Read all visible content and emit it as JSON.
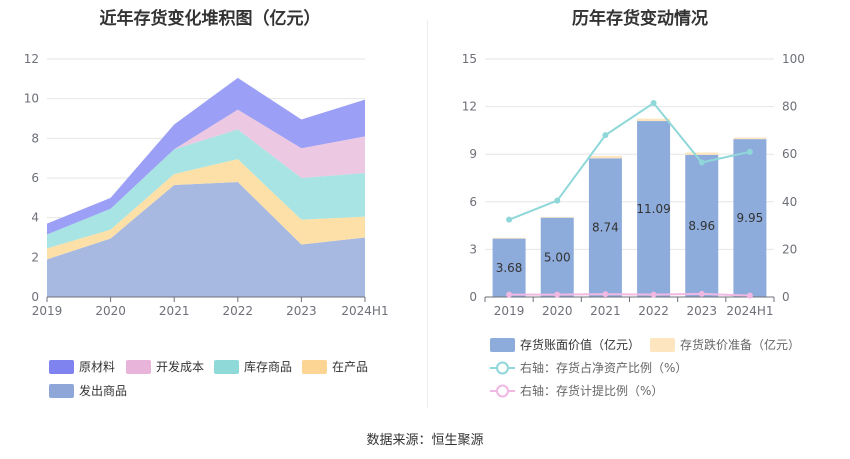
{
  "footer": "数据来源：恒生聚源",
  "chart_data": [
    {
      "type": "area",
      "stacked": true,
      "title": "近年存货变化堆积图（亿元）",
      "categories": [
        "2019",
        "2020",
        "2021",
        "2022",
        "2023",
        "2024H1"
      ],
      "ylim": [
        0,
        12
      ],
      "yticks": [
        0,
        2,
        4,
        6,
        8,
        10,
        12
      ],
      "grid": true,
      "legend_position": "bottom-left",
      "series": [
        {
          "name": "发出商品",
          "color": "#a7b9e0",
          "values": [
            1.9,
            2.95,
            5.65,
            5.8,
            2.65,
            3.0
          ]
        },
        {
          "name": "在产品",
          "color": "#fde0a8",
          "values": [
            0.55,
            0.45,
            0.55,
            1.15,
            1.25,
            1.05
          ]
        },
        {
          "name": "库存商品",
          "color": "#a8e4e3",
          "values": [
            0.7,
            1.05,
            1.25,
            1.5,
            2.1,
            2.2
          ]
        },
        {
          "name": "开发成本",
          "color": "#ecc8e2",
          "values": [
            0.0,
            0.0,
            0.0,
            1.0,
            1.5,
            1.85
          ]
        },
        {
          "name": "原材料",
          "color": "#9b9ff5",
          "values": [
            0.55,
            0.55,
            1.25,
            1.6,
            1.45,
            1.85
          ]
        }
      ],
      "legend_order": [
        "原材料",
        "开发成本",
        "库存商品",
        "在产品",
        "发出商品"
      ],
      "legend_colors": [
        "#7f83f0",
        "#e8b4d9",
        "#8fd9d8",
        "#fcd594",
        "#8ea7d8"
      ]
    },
    {
      "type": "bar+line",
      "title": "历年存货变动情况",
      "categories": [
        "2019",
        "2020",
        "2021",
        "2022",
        "2023",
        "2024H1"
      ],
      "ylim": [
        0,
        15
      ],
      "yticks": [
        0,
        3,
        6,
        9,
        12,
        15
      ],
      "y2lim": [
        0,
        100
      ],
      "y2ticks": [
        0,
        20,
        40,
        60,
        80,
        100
      ],
      "grid": true,
      "legend_position": "bottom",
      "bars": [
        {
          "name": "存货账面价值（亿元）",
          "color": "#8eacdb",
          "values": [
            3.68,
            5.0,
            8.74,
            11.09,
            8.96,
            9.95
          ],
          "labels": [
            "3.68",
            "5.00",
            "8.74",
            "11.09",
            "8.96",
            "9.95"
          ]
        },
        {
          "name": "存货跌价准备（亿元）",
          "color": "#fde6bf",
          "values": [
            0.05,
            0.05,
            0.15,
            0.15,
            0.15,
            0.1
          ]
        }
      ],
      "lines": [
        {
          "name": "右轴：存货占净资产比例（%）",
          "color": "#8fd7d9",
          "values": [
            32.5,
            40.5,
            68.0,
            81.5,
            56.5,
            61.0
          ]
        },
        {
          "name": "右轴：存货计提比例（%）",
          "color": "#f0b8e2",
          "values": [
            1.0,
            1.0,
            1.2,
            1.0,
            1.3,
            0.6
          ]
        }
      ]
    }
  ]
}
